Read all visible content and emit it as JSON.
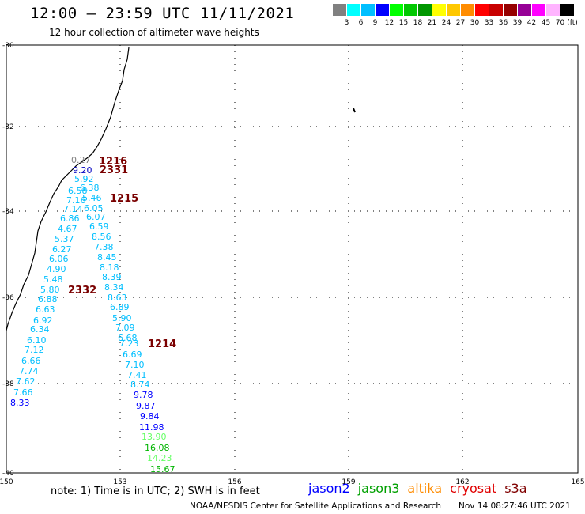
{
  "header": {
    "title": "12:00 – 23:59 UTC 11/11/2021",
    "subtitle": "12 hour collection of altimeter wave heights"
  },
  "color_legend": {
    "unit": "(ft)",
    "colors": [
      "#808080",
      "#00ffff",
      "#00bfff",
      "#0000ff",
      "#00ff00",
      "#00c800",
      "#009600",
      "#ffff00",
      "#ffc800",
      "#ff8c00",
      "#ff0000",
      "#c80000",
      "#960000",
      "#960096",
      "#ff00ff",
      "#ffb4ff",
      "#000000"
    ],
    "labels": [
      "3",
      "6",
      "9",
      "12",
      "15",
      "18",
      "21",
      "24",
      "27",
      "30",
      "33",
      "36",
      "39",
      "42",
      "45",
      "70"
    ]
  },
  "axes": {
    "lat_labels": [
      "-30",
      "-32",
      "-34",
      "-36",
      "-38",
      "-40"
    ],
    "lon_labels": [
      "150",
      "153",
      "156",
      "159",
      "162",
      "165"
    ]
  },
  "time_labels": [
    "1216",
    "2331",
    "1215",
    "2332",
    "1214"
  ],
  "track_a_values": [
    "0.27",
    "9.20",
    "5.92",
    "6.38",
    "6.58",
    "5.46",
    "7.16",
    "6.05",
    "7.14",
    "6.07",
    "6.86",
    "6.59",
    "4.67",
    "8.56",
    "5.37",
    "7.38",
    "6.27",
    "8.45",
    "6.06",
    "8.18",
    "4.90",
    "8.39",
    "5.48",
    "8.34",
    "5.80",
    "8.63",
    "6.88",
    "6.89",
    "6.63",
    "5.90",
    "6.92",
    "7.09",
    "6.34",
    "6.68",
    "6.10",
    "7.23",
    "7.12",
    "6.69",
    "6.66",
    "7.10",
    "7.74",
    "7.41",
    "7.62",
    "8.74",
    "7.66",
    "9.78",
    "8.33",
    "9.87",
    "9.84",
    "11.98",
    "13.90",
    "16.08",
    "14.23",
    "15.67"
  ],
  "footer": {
    "note": "note:  1) Time is in UTC;  2) SWH is in feet",
    "satellites": [
      "jason2",
      "jason3",
      "altika",
      "cryosat",
      "s3a"
    ],
    "satellite_colors": [
      "#0000ff",
      "#00a000",
      "#ff8c00",
      "#e00000",
      "#800000"
    ],
    "credit": "NOAA/NESDIS Center for Satellite Applications and Research",
    "datetime": "Nov 14 08:27:46 UTC 2021"
  }
}
